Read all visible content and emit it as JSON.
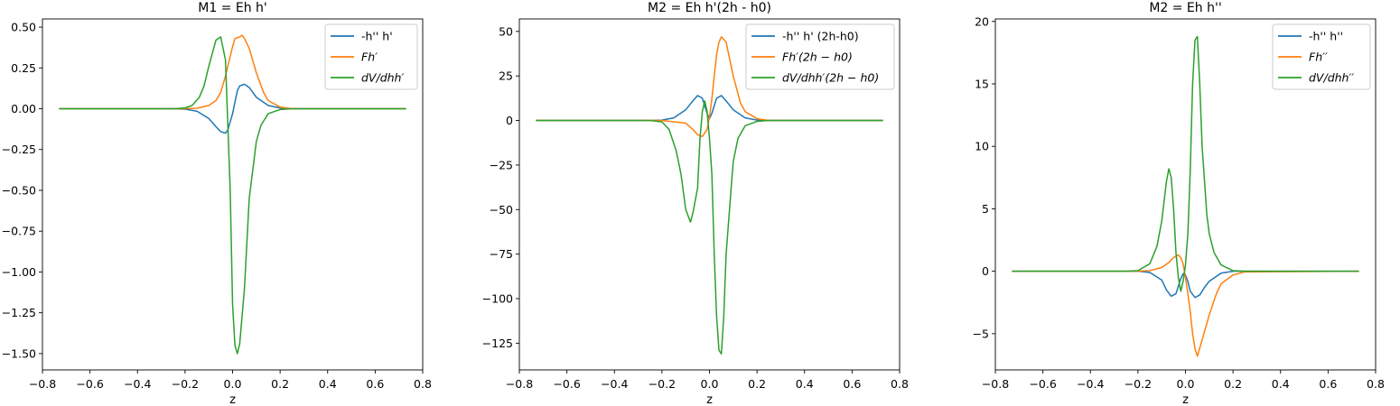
{
  "chart_data": [
    {
      "type": "line",
      "title": "M1 = Eh h'",
      "xlabel": "z",
      "ylabel": "",
      "xlim": [
        -0.8,
        0.8
      ],
      "ylim": [
        -1.6,
        0.55
      ],
      "xticks": [
        -0.8,
        -0.6,
        -0.4,
        -0.2,
        0.0,
        0.2,
        0.4,
        0.6,
        0.8
      ],
      "xtick_labels": [
        "−0.8",
        "−0.6",
        "−0.4",
        "−0.2",
        "0.0",
        "0.2",
        "0.4",
        "0.6",
        "0.8"
      ],
      "yticks": [
        0.5,
        0.25,
        0.0,
        -0.25,
        -0.5,
        -0.75,
        -1.0,
        -1.25,
        -1.5
      ],
      "ytick_labels": [
        "0.50",
        "0.25",
        "0.00",
        "−0.25",
        "−0.50",
        "−0.75",
        "−1.00",
        "−1.25",
        "−1.50"
      ],
      "legend_position": "top-right",
      "series": [
        {
          "name": "-h'' h'",
          "italic": false,
          "color": "#1f77b4",
          "x": [
            -0.73,
            -0.25,
            -0.2,
            -0.15,
            -0.1,
            -0.07,
            -0.05,
            -0.03,
            -0.02,
            0.0,
            0.02,
            0.03,
            0.05,
            0.07,
            0.1,
            0.15,
            0.2,
            0.25,
            0.73
          ],
          "y": [
            0.0,
            0.0,
            -0.003,
            -0.015,
            -0.06,
            -0.11,
            -0.14,
            -0.15,
            -0.13,
            -0.03,
            0.11,
            0.14,
            0.15,
            0.13,
            0.07,
            0.02,
            0.004,
            0.0,
            0.0
          ]
        },
        {
          "name": "Fh′",
          "italic": true,
          "color": "#ff7f0e",
          "x": [
            -0.73,
            -0.25,
            -0.2,
            -0.15,
            -0.1,
            -0.07,
            -0.05,
            -0.03,
            -0.01,
            0.0,
            0.01,
            0.03,
            0.04,
            0.05,
            0.07,
            0.1,
            0.13,
            0.15,
            0.2,
            0.25,
            0.73
          ],
          "y": [
            0.0,
            0.0,
            0.0,
            0.003,
            0.02,
            0.05,
            0.1,
            0.2,
            0.32,
            0.38,
            0.43,
            0.44,
            0.45,
            0.43,
            0.37,
            0.22,
            0.1,
            0.05,
            0.01,
            0.0,
            0.0
          ]
        },
        {
          "name": "dV/dhh′",
          "italic": true,
          "color": "#2ca02c",
          "x": [
            -0.73,
            -0.25,
            -0.2,
            -0.17,
            -0.14,
            -0.12,
            -0.1,
            -0.07,
            -0.05,
            -0.03,
            -0.01,
            0.0,
            0.01,
            0.02,
            0.03,
            0.05,
            0.07,
            0.1,
            0.12,
            0.15,
            0.2,
            0.25,
            0.73
          ],
          "y": [
            0.0,
            0.0,
            0.005,
            0.02,
            0.07,
            0.14,
            0.26,
            0.42,
            0.44,
            0.3,
            -0.5,
            -1.2,
            -1.45,
            -1.5,
            -1.44,
            -1.1,
            -0.55,
            -0.2,
            -0.1,
            -0.03,
            -0.005,
            0.0,
            0.0
          ]
        }
      ]
    },
    {
      "type": "line",
      "title": "M2 = Eh h'(2h - h0)",
      "xlabel": "z",
      "ylabel": "",
      "xlim": [
        -0.8,
        0.8
      ],
      "ylim": [
        -140,
        57
      ],
      "xticks": [
        -0.8,
        -0.6,
        -0.4,
        -0.2,
        0.0,
        0.2,
        0.4,
        0.6,
        0.8
      ],
      "xtick_labels": [
        "−0.8",
        "−0.6",
        "−0.4",
        "−0.2",
        "0.0",
        "0.2",
        "0.4",
        "0.6",
        "0.8"
      ],
      "yticks": [
        50,
        25,
        0,
        -25,
        -50,
        -75,
        -100,
        -125
      ],
      "ytick_labels": [
        "50",
        "25",
        "0",
        "−25",
        "−50",
        "−75",
        "−100",
        "−125"
      ],
      "legend_position": "top-right",
      "series": [
        {
          "name": "-h'' h' (2h-h0)",
          "italic": false,
          "color": "#1f77b4",
          "x": [
            -0.73,
            -0.25,
            -0.2,
            -0.15,
            -0.1,
            -0.07,
            -0.05,
            -0.03,
            -0.01,
            0.0,
            0.01,
            0.03,
            0.05,
            0.07,
            0.1,
            0.15,
            0.2,
            0.25,
            0.73
          ],
          "y": [
            0.0,
            0.0,
            0.2,
            1.5,
            6.0,
            11.0,
            14.0,
            12.5,
            4.0,
            1.0,
            4.0,
            12.5,
            14.0,
            11.0,
            6.0,
            1.5,
            0.2,
            0.0,
            0.0
          ]
        },
        {
          "name": "Fh′(2h − h0)",
          "italic": true,
          "color": "#ff7f0e",
          "x": [
            -0.73,
            -0.2,
            -0.1,
            -0.07,
            -0.05,
            -0.03,
            -0.01,
            0.0,
            0.01,
            0.02,
            0.03,
            0.04,
            0.05,
            0.07,
            0.1,
            0.13,
            0.15,
            0.2,
            0.25,
            0.73
          ],
          "y": [
            0.0,
            0.0,
            -1.5,
            -5.0,
            -8.0,
            -9.0,
            -5.0,
            2.0,
            12.0,
            25.0,
            37.0,
            44.0,
            47.0,
            44.0,
            25.0,
            10.0,
            5.0,
            1.0,
            0.0,
            0.0
          ]
        },
        {
          "name": "dV/dhh′(2h − h0)",
          "italic": true,
          "color": "#2ca02c",
          "x": [
            -0.73,
            -0.25,
            -0.2,
            -0.17,
            -0.14,
            -0.12,
            -0.1,
            -0.08,
            -0.07,
            -0.05,
            -0.04,
            -0.03,
            -0.02,
            -0.01,
            0.0,
            0.01,
            0.02,
            0.03,
            0.04,
            0.05,
            0.06,
            0.07,
            0.09,
            0.1,
            0.12,
            0.15,
            0.2,
            0.25,
            0.73
          ],
          "y": [
            0.0,
            0.0,
            -0.8,
            -5.0,
            -17.0,
            -30.0,
            -50.0,
            -57.0,
            -52.0,
            -38.0,
            -10.0,
            5.0,
            11.0,
            5.0,
            -10.0,
            -30.0,
            -75.0,
            -110.0,
            -129.0,
            -131.0,
            -110.0,
            -75.0,
            -40.0,
            -23.0,
            -10.0,
            -3.0,
            -0.5,
            0.0,
            0.0
          ]
        }
      ]
    },
    {
      "type": "line",
      "title": "M2 = Eh h''",
      "xlabel": "z",
      "ylabel": "",
      "xlim": [
        -0.8,
        0.8
      ],
      "ylim": [
        -7.9,
        20.2
      ],
      "xticks": [
        -0.8,
        -0.6,
        -0.4,
        -0.2,
        0.0,
        0.2,
        0.4,
        0.6,
        0.8
      ],
      "xtick_labels": [
        "−0.8",
        "−0.6",
        "−0.4",
        "−0.2",
        "0.0",
        "0.2",
        "0.4",
        "0.6",
        "0.8"
      ],
      "yticks": [
        20,
        15,
        10,
        5,
        0,
        -5
      ],
      "ytick_labels": [
        "20",
        "15",
        "10",
        "5",
        "0",
        "−5"
      ],
      "legend_position": "top-right",
      "series": [
        {
          "name": "-h'' h''",
          "italic": false,
          "color": "#1f77b4",
          "x": [
            -0.73,
            -0.2,
            -0.15,
            -0.1,
            -0.08,
            -0.06,
            -0.04,
            -0.02,
            -0.01,
            0.0,
            0.01,
            0.02,
            0.04,
            0.06,
            0.08,
            0.1,
            0.15,
            0.2,
            0.73
          ],
          "y": [
            0.0,
            0.0,
            -0.1,
            -0.7,
            -1.5,
            -2.0,
            -1.8,
            -0.6,
            -0.2,
            -0.3,
            -0.8,
            -1.6,
            -2.1,
            -1.9,
            -1.3,
            -0.8,
            -0.15,
            0.0,
            0.0
          ]
        },
        {
          "name": "Fh′′",
          "italic": true,
          "color": "#ff7f0e",
          "x": [
            -0.73,
            -0.2,
            -0.15,
            -0.1,
            -0.07,
            -0.05,
            -0.03,
            -0.02,
            -0.01,
            0.0,
            0.01,
            0.02,
            0.03,
            0.04,
            0.05,
            0.07,
            0.1,
            0.13,
            0.15,
            0.2,
            0.25,
            0.73
          ],
          "y": [
            0.0,
            0.0,
            0.05,
            0.3,
            0.7,
            1.1,
            1.3,
            1.1,
            0.6,
            -0.5,
            -1.8,
            -3.2,
            -5.0,
            -6.2,
            -6.8,
            -5.5,
            -3.5,
            -1.8,
            -1.0,
            -0.3,
            -0.05,
            0.0
          ]
        },
        {
          "name": "dV/dhh′′",
          "italic": true,
          "color": "#2ca02c",
          "x": [
            -0.73,
            -0.25,
            -0.2,
            -0.15,
            -0.12,
            -0.1,
            -0.08,
            -0.07,
            -0.06,
            -0.05,
            -0.04,
            -0.03,
            -0.02,
            -0.01,
            0.0,
            0.01,
            0.02,
            0.03,
            0.04,
            0.05,
            0.06,
            0.07,
            0.09,
            0.1,
            0.12,
            0.15,
            0.2,
            0.25,
            0.73
          ],
          "y": [
            0.0,
            0.0,
            0.05,
            0.6,
            2.0,
            4.0,
            7.2,
            8.2,
            7.5,
            5.0,
            1.5,
            -0.5,
            -1.6,
            -0.8,
            0.5,
            3.0,
            8.0,
            15.0,
            18.5,
            18.8,
            15.0,
            10.0,
            4.5,
            3.0,
            1.5,
            0.5,
            0.05,
            0.0,
            0.0
          ]
        }
      ]
    }
  ]
}
